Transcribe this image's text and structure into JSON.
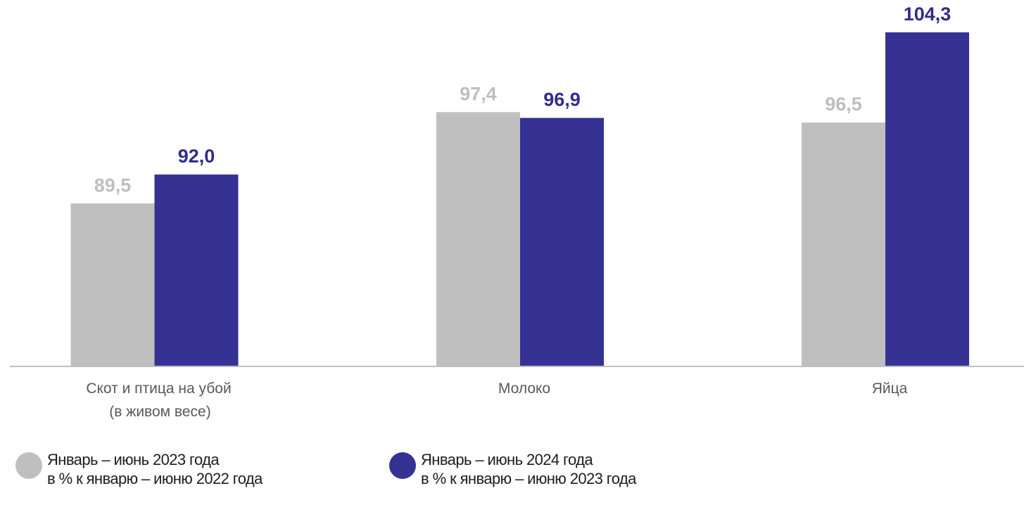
{
  "chart_data": {
    "type": "bar",
    "categories": [
      [
        "Скот и птица на убой",
        "(в живом весе)"
      ],
      [
        "Молоко"
      ],
      [
        "Яйца"
      ]
    ],
    "series": [
      {
        "name": [
          "Январь – июнь 2023 года",
          "в % к  январю – июню 2022 года"
        ],
        "values": [
          89.5,
          97.4,
          96.5
        ],
        "labels": [
          "89,5",
          "97,4",
          "96,5"
        ],
        "color": "#bfbfbf",
        "label_color": "#bfbfbf"
      },
      {
        "name": [
          "Январь – июнь 2024 года",
          "в % к  январю – июню 2023 года"
        ],
        "values": [
          92.0,
          96.9,
          104.3
        ],
        "labels": [
          "92,0",
          "96,9",
          "104,3"
        ],
        "color": "#353294",
        "label_color": "#2f2c8f"
      }
    ],
    "axis_color": "#bfbfbf",
    "grid": false,
    "legend_position": "bottom"
  }
}
